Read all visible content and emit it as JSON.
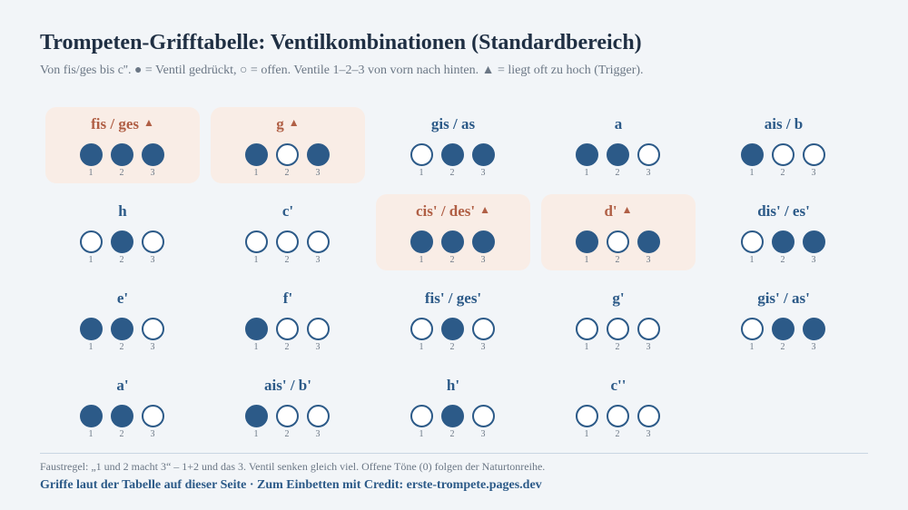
{
  "title": "Trompeten-Grifftabelle: Ventilkombinationen (Standardbereich)",
  "subtitle": "Von fis/ges bis c''. ● = Ventil gedrückt, ○ = offen. Ventile 1–2–3 von vorn nach hinten. ▲ = liegt oft zu hoch (Trigger).",
  "trigger_symbol": "▲",
  "valve_labels": [
    "1",
    "2",
    "3"
  ],
  "colors": {
    "pressed": "#2c5a88",
    "open": "#ffffff",
    "note_normal": "#2c5a88",
    "note_high": "#b05f45",
    "high_background": "#f9ede6"
  },
  "notes": [
    {
      "name": "fis / ges",
      "valves": [
        1,
        1,
        1
      ],
      "high": true
    },
    {
      "name": "g",
      "valves": [
        1,
        0,
        1
      ],
      "high": true
    },
    {
      "name": "gis / as",
      "valves": [
        0,
        1,
        1
      ],
      "high": false
    },
    {
      "name": "a",
      "valves": [
        1,
        1,
        0
      ],
      "high": false
    },
    {
      "name": "ais / b",
      "valves": [
        1,
        0,
        0
      ],
      "high": false
    },
    {
      "name": "h",
      "valves": [
        0,
        1,
        0
      ],
      "high": false
    },
    {
      "name": "c'",
      "valves": [
        0,
        0,
        0
      ],
      "high": false
    },
    {
      "name": "cis' / des'",
      "valves": [
        1,
        1,
        1
      ],
      "high": true
    },
    {
      "name": "d'",
      "valves": [
        1,
        0,
        1
      ],
      "high": true
    },
    {
      "name": "dis' / es'",
      "valves": [
        0,
        1,
        1
      ],
      "high": false
    },
    {
      "name": "e'",
      "valves": [
        1,
        1,
        0
      ],
      "high": false
    },
    {
      "name": "f'",
      "valves": [
        1,
        0,
        0
      ],
      "high": false
    },
    {
      "name": "fis' / ges'",
      "valves": [
        0,
        1,
        0
      ],
      "high": false
    },
    {
      "name": "g'",
      "valves": [
        0,
        0,
        0
      ],
      "high": false
    },
    {
      "name": "gis' / as'",
      "valves": [
        0,
        1,
        1
      ],
      "high": false
    },
    {
      "name": "a'",
      "valves": [
        1,
        1,
        0
      ],
      "high": false
    },
    {
      "name": "ais' / b'",
      "valves": [
        1,
        0,
        0
      ],
      "high": false
    },
    {
      "name": "h'",
      "valves": [
        0,
        1,
        0
      ],
      "high": false
    },
    {
      "name": "c''",
      "valves": [
        0,
        0,
        0
      ],
      "high": false
    }
  ],
  "footnote": "Faustregel: „1 und 2 macht 3“ – 1+2 und das 3. Ventil senken gleich viel. Offene Töne (0) folgen der Naturtonreihe.",
  "credit": "Griffe laut der Tabelle auf dieser Seite · Zum Einbetten mit Credit: erste-trompete.pages.dev"
}
